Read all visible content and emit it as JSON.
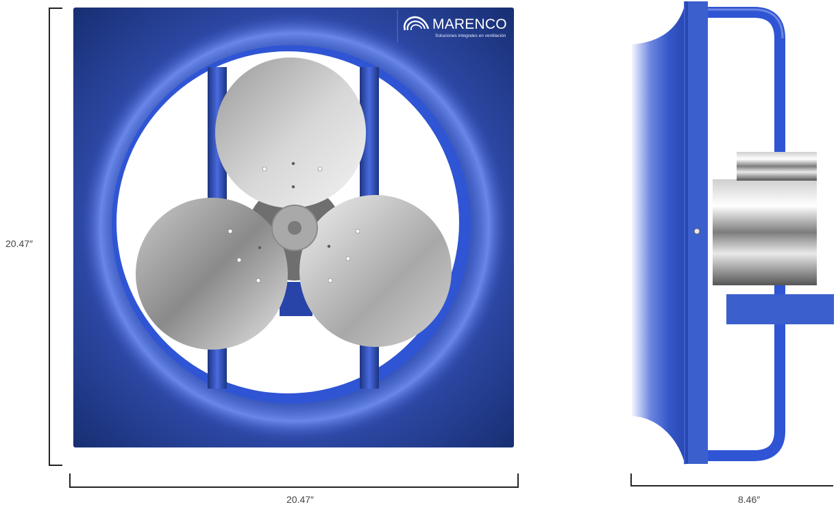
{
  "dimensions": {
    "front_height": "20.47″",
    "front_width": "20.47″",
    "side_depth": "8.46″"
  },
  "brand": {
    "name": "MARENCO",
    "tagline": "Soluciones integrales en ventilación",
    "logo_icon": "swirl-logo-icon"
  },
  "colors": {
    "housing_blue": "#1f3a8f",
    "ring_blue": "#2f55d4",
    "side_blue": "#3b5fcc",
    "blade_gray": "#b9b9b9",
    "dimension_line": "#222222"
  }
}
